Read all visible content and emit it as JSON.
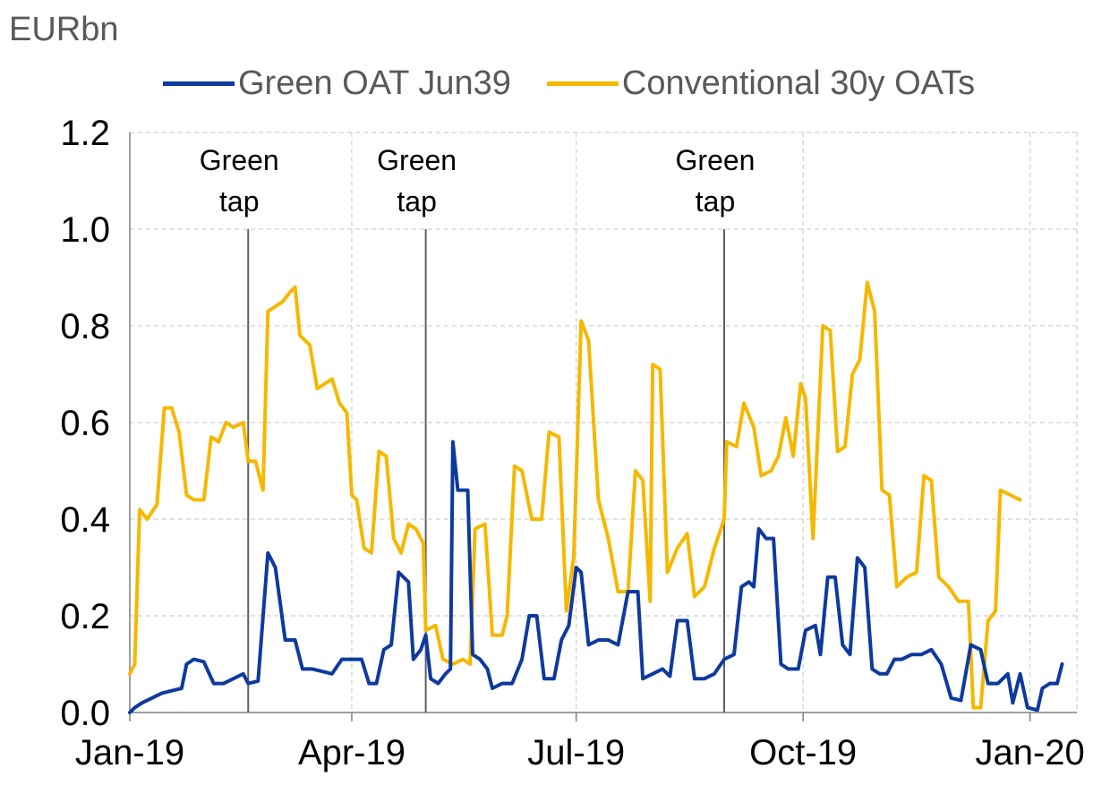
{
  "chart_data": {
    "type": "line",
    "unit_label": "EURbn",
    "ylim": [
      0.0,
      1.2
    ],
    "y_ticks": [
      "0.0",
      "0.2",
      "0.4",
      "0.6",
      "0.8",
      "1.0",
      "1.2"
    ],
    "x_ticks": [
      "Jan-19",
      "Apr-19",
      "Jul-19",
      "Oct-19",
      "Jan-20"
    ],
    "grid": true,
    "legend_position": "top",
    "colors": {
      "green": "#0e3a9e",
      "conventional": "#f5b800"
    },
    "annotations": [
      {
        "label_lines": [
          "Green",
          "tap"
        ],
        "date": "2019-02-18"
      },
      {
        "label_lines": [
          "Green",
          "tap"
        ],
        "date": "2019-05-01"
      },
      {
        "label_lines": [
          "Green",
          "tap"
        ],
        "date": "2019-08-30"
      }
    ],
    "series": [
      {
        "name": "Green OAT Jun39",
        "color": "#0e3a9e",
        "points": [
          [
            "2019-01-01",
            0.0
          ],
          [
            "2019-01-03",
            0.01
          ],
          [
            "2019-01-06",
            0.02
          ],
          [
            "2019-01-10",
            0.03
          ],
          [
            "2019-01-14",
            0.04
          ],
          [
            "2019-01-18",
            0.045
          ],
          [
            "2019-01-22",
            0.05
          ],
          [
            "2019-01-24",
            0.1
          ],
          [
            "2019-01-27",
            0.11
          ],
          [
            "2019-01-31",
            0.105
          ],
          [
            "2019-02-04",
            0.06
          ],
          [
            "2019-02-08",
            0.06
          ],
          [
            "2019-02-12",
            0.07
          ],
          [
            "2019-02-16",
            0.08
          ],
          [
            "2019-02-18",
            0.06
          ],
          [
            "2019-02-22",
            0.065
          ],
          [
            "2019-02-26",
            0.33
          ],
          [
            "2019-03-01",
            0.3
          ],
          [
            "2019-03-05",
            0.15
          ],
          [
            "2019-03-09",
            0.15
          ],
          [
            "2019-03-12",
            0.09
          ],
          [
            "2019-03-16",
            0.09
          ],
          [
            "2019-03-20",
            0.085
          ],
          [
            "2019-03-24",
            0.08
          ],
          [
            "2019-03-28",
            0.11
          ],
          [
            "2019-04-01",
            0.11
          ],
          [
            "2019-04-05",
            0.11
          ],
          [
            "2019-04-08",
            0.06
          ],
          [
            "2019-04-11",
            0.06
          ],
          [
            "2019-04-14",
            0.13
          ],
          [
            "2019-04-17",
            0.14
          ],
          [
            "2019-04-20",
            0.29
          ],
          [
            "2019-04-24",
            0.27
          ],
          [
            "2019-04-26",
            0.11
          ],
          [
            "2019-04-29",
            0.13
          ],
          [
            "2019-05-01",
            0.16
          ],
          [
            "2019-05-03",
            0.07
          ],
          [
            "2019-05-06",
            0.06
          ],
          [
            "2019-05-09",
            0.08
          ],
          [
            "2019-05-11",
            0.09
          ],
          [
            "2019-05-12",
            0.56
          ],
          [
            "2019-05-14",
            0.46
          ],
          [
            "2019-05-18",
            0.46
          ],
          [
            "2019-05-20",
            0.12
          ],
          [
            "2019-05-23",
            0.11
          ],
          [
            "2019-05-26",
            0.09
          ],
          [
            "2019-05-28",
            0.05
          ],
          [
            "2019-06-01",
            0.06
          ],
          [
            "2019-06-05",
            0.06
          ],
          [
            "2019-06-09",
            0.11
          ],
          [
            "2019-06-12",
            0.2
          ],
          [
            "2019-06-15",
            0.2
          ],
          [
            "2019-06-18",
            0.07
          ],
          [
            "2019-06-22",
            0.07
          ],
          [
            "2019-06-25",
            0.15
          ],
          [
            "2019-06-28",
            0.18
          ],
          [
            "2019-07-01",
            0.3
          ],
          [
            "2019-07-03",
            0.29
          ],
          [
            "2019-07-06",
            0.14
          ],
          [
            "2019-07-10",
            0.15
          ],
          [
            "2019-07-14",
            0.15
          ],
          [
            "2019-07-18",
            0.14
          ],
          [
            "2019-07-22",
            0.25
          ],
          [
            "2019-07-26",
            0.25
          ],
          [
            "2019-07-28",
            0.07
          ],
          [
            "2019-08-01",
            0.08
          ],
          [
            "2019-08-05",
            0.09
          ],
          [
            "2019-08-08",
            0.075
          ],
          [
            "2019-08-11",
            0.19
          ],
          [
            "2019-08-15",
            0.19
          ],
          [
            "2019-08-18",
            0.07
          ],
          [
            "2019-08-22",
            0.07
          ],
          [
            "2019-08-26",
            0.08
          ],
          [
            "2019-08-30",
            0.11
          ],
          [
            "2019-09-03",
            0.12
          ],
          [
            "2019-09-06",
            0.26
          ],
          [
            "2019-09-09",
            0.27
          ],
          [
            "2019-09-11",
            0.26
          ],
          [
            "2019-09-13",
            0.38
          ],
          [
            "2019-09-16",
            0.36
          ],
          [
            "2019-09-19",
            0.36
          ],
          [
            "2019-09-22",
            0.1
          ],
          [
            "2019-09-25",
            0.09
          ],
          [
            "2019-09-29",
            0.09
          ],
          [
            "2019-10-02",
            0.17
          ],
          [
            "2019-10-06",
            0.18
          ],
          [
            "2019-10-08",
            0.12
          ],
          [
            "2019-10-11",
            0.28
          ],
          [
            "2019-10-14",
            0.28
          ],
          [
            "2019-10-17",
            0.14
          ],
          [
            "2019-10-20",
            0.12
          ],
          [
            "2019-10-23",
            0.32
          ],
          [
            "2019-10-26",
            0.3
          ],
          [
            "2019-10-29",
            0.09
          ],
          [
            "2019-11-01",
            0.08
          ],
          [
            "2019-11-04",
            0.08
          ],
          [
            "2019-11-07",
            0.11
          ],
          [
            "2019-11-10",
            0.11
          ],
          [
            "2019-11-14",
            0.12
          ],
          [
            "2019-11-18",
            0.12
          ],
          [
            "2019-11-22",
            0.13
          ],
          [
            "2019-11-26",
            0.1
          ],
          [
            "2019-11-30",
            0.03
          ],
          [
            "2019-12-04",
            0.025
          ],
          [
            "2019-12-08",
            0.14
          ],
          [
            "2019-12-12",
            0.13
          ],
          [
            "2019-12-15",
            0.06
          ],
          [
            "2019-12-19",
            0.06
          ],
          [
            "2019-12-23",
            0.08
          ],
          [
            "2019-12-25",
            0.02
          ],
          [
            "2019-12-28",
            0.08
          ],
          [
            "2019-12-31",
            0.01
          ],
          [
            "2020-01-04",
            0.005
          ],
          [
            "2020-01-06",
            0.05
          ],
          [
            "2020-01-09",
            0.06
          ],
          [
            "2020-01-12",
            0.06
          ],
          [
            "2020-01-14",
            0.1
          ]
        ]
      },
      {
        "name": "Conventional 30y OATs",
        "color": "#f5b800",
        "points": [
          [
            "2019-01-01",
            0.08
          ],
          [
            "2019-01-03",
            0.1
          ],
          [
            "2019-01-05",
            0.42
          ],
          [
            "2019-01-08",
            0.4
          ],
          [
            "2019-01-12",
            0.43
          ],
          [
            "2019-01-15",
            0.63
          ],
          [
            "2019-01-18",
            0.63
          ],
          [
            "2019-01-21",
            0.58
          ],
          [
            "2019-01-24",
            0.45
          ],
          [
            "2019-01-27",
            0.44
          ],
          [
            "2019-01-31",
            0.44
          ],
          [
            "2019-02-03",
            0.57
          ],
          [
            "2019-02-06",
            0.56
          ],
          [
            "2019-02-09",
            0.6
          ],
          [
            "2019-02-12",
            0.59
          ],
          [
            "2019-02-16",
            0.6
          ],
          [
            "2019-02-18",
            0.52
          ],
          [
            "2019-02-21",
            0.52
          ],
          [
            "2019-02-24",
            0.46
          ],
          [
            "2019-02-26",
            0.83
          ],
          [
            "2019-03-01",
            0.84
          ],
          [
            "2019-03-04",
            0.85
          ],
          [
            "2019-03-07",
            0.87
          ],
          [
            "2019-03-09",
            0.88
          ],
          [
            "2019-03-11",
            0.78
          ],
          [
            "2019-03-15",
            0.76
          ],
          [
            "2019-03-18",
            0.67
          ],
          [
            "2019-03-21",
            0.68
          ],
          [
            "2019-03-24",
            0.69
          ],
          [
            "2019-03-27",
            0.64
          ],
          [
            "2019-03-30",
            0.62
          ],
          [
            "2019-04-01",
            0.45
          ],
          [
            "2019-04-03",
            0.44
          ],
          [
            "2019-04-06",
            0.34
          ],
          [
            "2019-04-09",
            0.33
          ],
          [
            "2019-04-12",
            0.54
          ],
          [
            "2019-04-15",
            0.53
          ],
          [
            "2019-04-18",
            0.36
          ],
          [
            "2019-04-21",
            0.33
          ],
          [
            "2019-04-24",
            0.39
          ],
          [
            "2019-04-27",
            0.38
          ],
          [
            "2019-04-30",
            0.35
          ],
          [
            "2019-05-01",
            0.17
          ],
          [
            "2019-05-05",
            0.18
          ],
          [
            "2019-05-08",
            0.11
          ],
          [
            "2019-05-12",
            0.1
          ],
          [
            "2019-05-16",
            0.11
          ],
          [
            "2019-05-19",
            0.1
          ],
          [
            "2019-05-21",
            0.38
          ],
          [
            "2019-05-25",
            0.39
          ],
          [
            "2019-05-28",
            0.16
          ],
          [
            "2019-06-01",
            0.16
          ],
          [
            "2019-06-03",
            0.2
          ],
          [
            "2019-06-06",
            0.51
          ],
          [
            "2019-06-09",
            0.5
          ],
          [
            "2019-06-13",
            0.4
          ],
          [
            "2019-06-17",
            0.4
          ],
          [
            "2019-06-20",
            0.58
          ],
          [
            "2019-06-24",
            0.57
          ],
          [
            "2019-06-27",
            0.21
          ],
          [
            "2019-06-30",
            0.32
          ],
          [
            "2019-07-03",
            0.81
          ],
          [
            "2019-07-06",
            0.77
          ],
          [
            "2019-07-10",
            0.44
          ],
          [
            "2019-07-14",
            0.36
          ],
          [
            "2019-07-18",
            0.25
          ],
          [
            "2019-07-22",
            0.25
          ],
          [
            "2019-07-25",
            0.5
          ],
          [
            "2019-07-28",
            0.48
          ],
          [
            "2019-07-31",
            0.23
          ],
          [
            "2019-08-01",
            0.72
          ],
          [
            "2019-08-04",
            0.71
          ],
          [
            "2019-08-07",
            0.29
          ],
          [
            "2019-08-11",
            0.34
          ],
          [
            "2019-08-15",
            0.37
          ],
          [
            "2019-08-18",
            0.24
          ],
          [
            "2019-08-22",
            0.26
          ],
          [
            "2019-08-26",
            0.34
          ],
          [
            "2019-08-30",
            0.4
          ],
          [
            "2019-08-31",
            0.56
          ],
          [
            "2019-09-04",
            0.55
          ],
          [
            "2019-09-07",
            0.64
          ],
          [
            "2019-09-11",
            0.59
          ],
          [
            "2019-09-14",
            0.49
          ],
          [
            "2019-09-18",
            0.5
          ],
          [
            "2019-09-21",
            0.53
          ],
          [
            "2019-09-24",
            0.61
          ],
          [
            "2019-09-27",
            0.53
          ],
          [
            "2019-09-30",
            0.68
          ],
          [
            "2019-10-02",
            0.65
          ],
          [
            "2019-10-05",
            0.36
          ],
          [
            "2019-10-09",
            0.8
          ],
          [
            "2019-10-12",
            0.79
          ],
          [
            "2019-10-15",
            0.54
          ],
          [
            "2019-10-18",
            0.55
          ],
          [
            "2019-10-21",
            0.7
          ],
          [
            "2019-10-24",
            0.73
          ],
          [
            "2019-10-27",
            0.89
          ],
          [
            "2019-10-30",
            0.83
          ],
          [
            "2019-11-02",
            0.46
          ],
          [
            "2019-11-05",
            0.45
          ],
          [
            "2019-11-08",
            0.26
          ],
          [
            "2019-11-12",
            0.28
          ],
          [
            "2019-11-16",
            0.29
          ],
          [
            "2019-11-19",
            0.49
          ],
          [
            "2019-11-22",
            0.48
          ],
          [
            "2019-11-25",
            0.28
          ],
          [
            "2019-11-29",
            0.26
          ],
          [
            "2019-12-03",
            0.23
          ],
          [
            "2019-12-07",
            0.23
          ],
          [
            "2019-12-09",
            0.01
          ],
          [
            "2019-12-12",
            0.01
          ],
          [
            "2019-12-15",
            0.19
          ],
          [
            "2019-12-18",
            0.21
          ],
          [
            "2019-12-20",
            0.46
          ],
          [
            "2019-12-24",
            0.45
          ],
          [
            "2019-12-28",
            0.44
          ]
        ]
      }
    ]
  }
}
